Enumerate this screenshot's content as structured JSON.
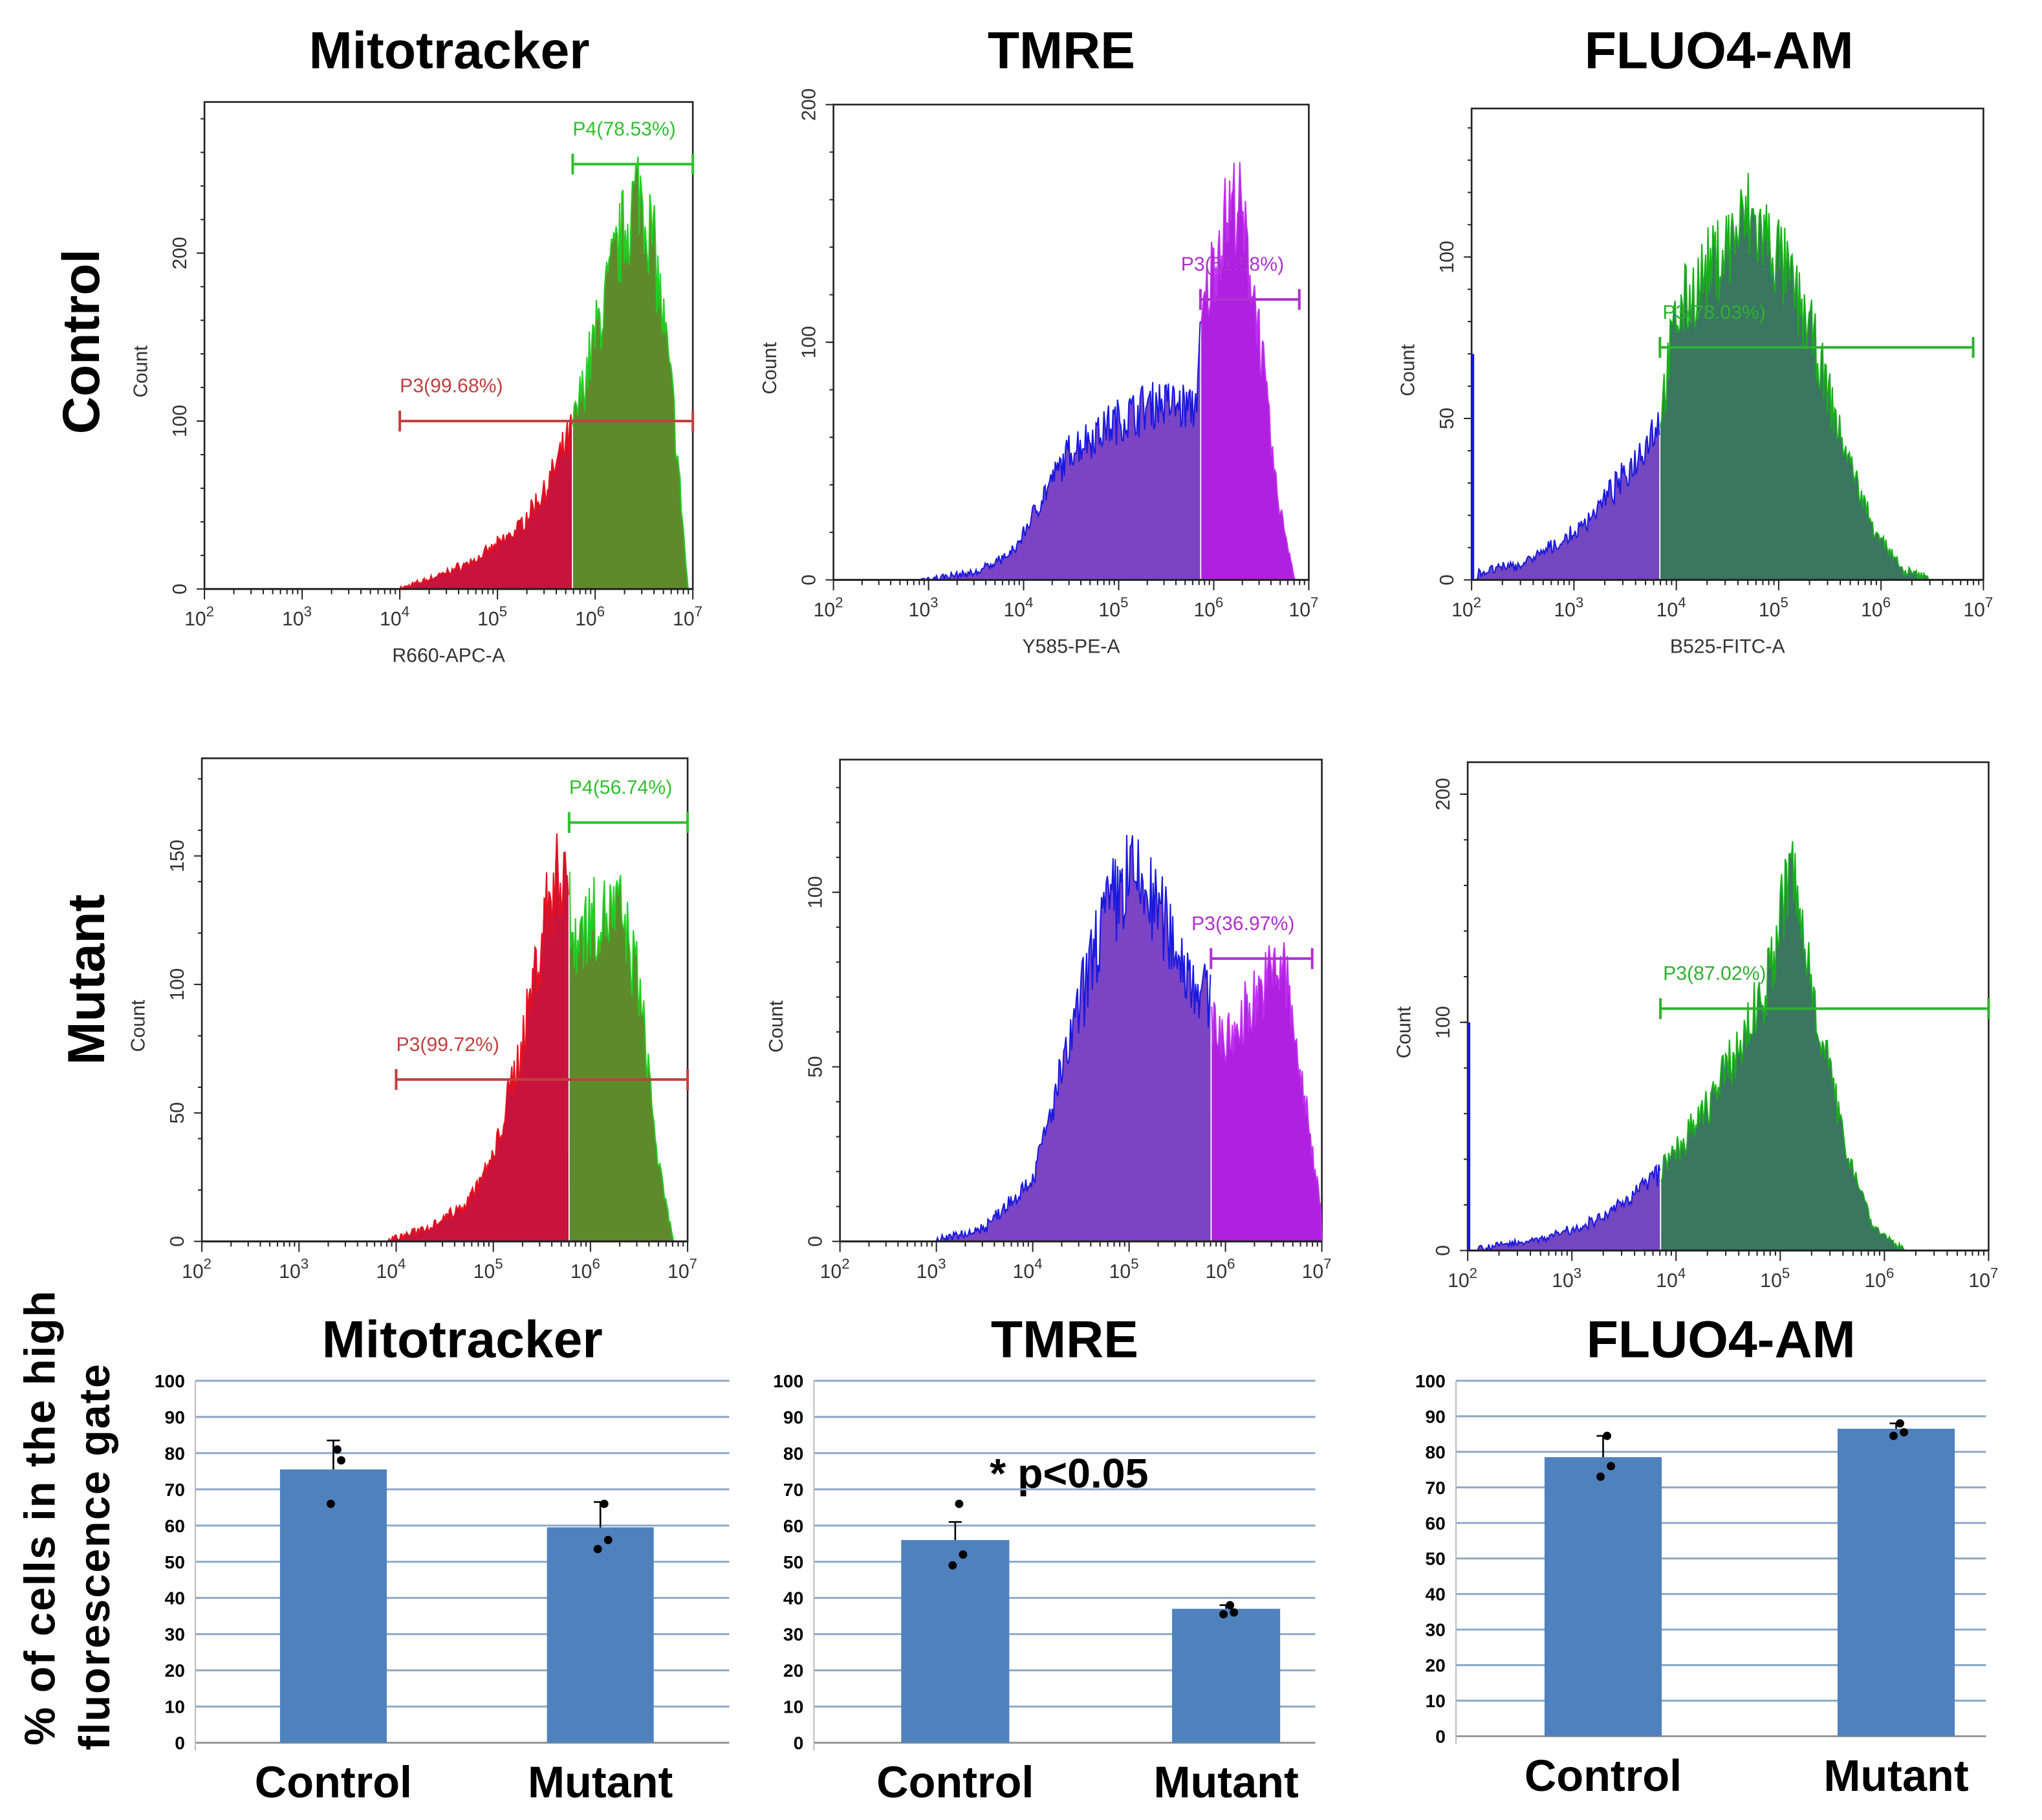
{
  "column_titles": [
    "Mitotracker",
    "TMRE",
    "FLUO4-AM"
  ],
  "row_labels": [
    "Control",
    "Mutant"
  ],
  "bar_ylabel_lines": [
    "% of cells in the high",
    "fluorescence gate"
  ],
  "significance": "* p<0.05",
  "colors": {
    "mito_low": "#c8143c",
    "mito_low_line": "#e8101c",
    "mito_high": "#5e8a2c",
    "mito_high_line": "#22d022",
    "tmre_low": "#7a44c4",
    "tmre_low_line": "#1818e0",
    "tmre_high": "#b020e0",
    "tmre_high_line": "#c030f0",
    "fluo_low": "#7446c0",
    "fluo_low_line": "#1818e0",
    "fluo_high": "#3a7660",
    "fluo_high_line": "#18b018",
    "bar": "#4f81bd",
    "grid": "#8ea9c8"
  },
  "chart_data": [
    {
      "type": "area",
      "name": "mito-control",
      "title": "",
      "xlabel": "R660-APC-A",
      "ylabel": "Count",
      "xscale": "log",
      "xlim": [
        100,
        10000000
      ],
      "ylim": [
        0,
        290
      ],
      "yticks": [
        0,
        100,
        200
      ],
      "xticks": [
        "2",
        "3",
        "4",
        "5",
        "6",
        "7"
      ],
      "gate_split_log10": 5.77,
      "gates": [
        {
          "label": "P3(99.68%)",
          "count": 100,
          "from_log10": 4,
          "to_log10": 7,
          "color": "#c04040"
        },
        {
          "label": "P4(78.53%)",
          "count": 253,
          "from_log10": 5.77,
          "to_log10": 7,
          "color": "#30c030"
        }
      ],
      "profile_log10_count": [
        [
          4,
          0
        ],
        [
          4.4,
          8
        ],
        [
          4.8,
          18
        ],
        [
          5.2,
          35
        ],
        [
          5.5,
          60
        ],
        [
          5.77,
          95
        ],
        [
          6,
          150
        ],
        [
          6.25,
          205
        ],
        [
          6.45,
          240
        ],
        [
          6.6,
          205
        ],
        [
          6.8,
          110
        ],
        [
          6.95,
          0
        ]
      ],
      "palette": "mito"
    },
    {
      "type": "area",
      "name": "tmre-control",
      "title": "",
      "xlabel": "Y585-PE-A",
      "ylabel": "Count",
      "xscale": "log",
      "xlim": [
        100,
        10000000
      ],
      "ylim": [
        0,
        200
      ],
      "yticks": [
        0,
        100,
        200
      ],
      "xticks": [
        "2",
        "3",
        "4",
        "5",
        "6",
        "7"
      ],
      "gate_split_log10": 5.86,
      "gates": [
        {
          "label": "P3(51.58%)",
          "count": 118,
          "from_log10": 5.86,
          "to_log10": 6.9,
          "color": "#b030d0"
        }
      ],
      "profile_log10_count": [
        [
          2.9,
          0
        ],
        [
          3.5,
          3
        ],
        [
          3.9,
          12
        ],
        [
          4.2,
          35
        ],
        [
          4.5,
          55
        ],
        [
          4.9,
          65
        ],
        [
          5.4,
          75
        ],
        [
          5.8,
          72
        ],
        [
          5.9,
          115
        ],
        [
          6.1,
          150
        ],
        [
          6.25,
          160
        ],
        [
          6.45,
          115
        ],
        [
          6.65,
          40
        ],
        [
          6.85,
          0
        ]
      ],
      "palette": "tmre"
    },
    {
      "type": "area",
      "name": "fluo-control",
      "title": "",
      "xlabel": "B525-FITC-A",
      "ylabel": "Count",
      "xscale": "log",
      "xlim": [
        100,
        10000000
      ],
      "ylim": [
        0,
        146
      ],
      "yticks": [
        0,
        50,
        100
      ],
      "xticks": [
        "2",
        "3",
        "4",
        "5",
        "6",
        "7"
      ],
      "gate_split_log10": 3.84,
      "gates": [
        {
          "label": "P3(78.03%)",
          "count": 72,
          "from_log10": 3.84,
          "to_log10": 6.9,
          "color": "#30b030"
        }
      ],
      "spike": {
        "log10": 2,
        "count": 70
      },
      "profile_log10_count": [
        [
          2.05,
          2
        ],
        [
          2.5,
          5
        ],
        [
          3,
          14
        ],
        [
          3.5,
          32
        ],
        [
          3.84,
          50
        ],
        [
          4,
          82
        ],
        [
          4.3,
          95
        ],
        [
          4.7,
          112
        ],
        [
          5,
          100
        ],
        [
          5.3,
          78
        ],
        [
          5.6,
          45
        ],
        [
          5.9,
          18
        ],
        [
          6.2,
          3
        ],
        [
          6.5,
          0
        ]
      ],
      "palette": "fluo"
    },
    {
      "type": "area",
      "name": "mito-mutant",
      "title": "",
      "xlabel": "",
      "ylabel": "Count",
      "xscale": "log",
      "xlim": [
        100,
        10000000
      ],
      "ylim": [
        0,
        188
      ],
      "yticks": [
        0,
        50,
        100,
        150
      ],
      "xticks": [
        "2",
        "3",
        "4",
        "5",
        "6",
        "7"
      ],
      "gate_split_log10": 5.78,
      "gates": [
        {
          "label": "P3(99.72%)",
          "count": 63,
          "from_log10": 4,
          "to_log10": 7,
          "color": "#c04040"
        },
        {
          "label": "P4(56.74%)",
          "count": 163,
          "from_log10": 5.78,
          "to_log10": 7,
          "color": "#30c030"
        }
      ],
      "profile_log10_count": [
        [
          3.9,
          0
        ],
        [
          4.3,
          5
        ],
        [
          4.7,
          14
        ],
        [
          5,
          32
        ],
        [
          5.3,
          78
        ],
        [
          5.55,
          130
        ],
        [
          5.75,
          150
        ],
        [
          5.8,
          118
        ],
        [
          6,
          125
        ],
        [
          6.3,
          128
        ],
        [
          6.5,
          100
        ],
        [
          6.7,
          30
        ],
        [
          6.85,
          0
        ]
      ],
      "palette": "mito"
    },
    {
      "type": "area",
      "name": "tmre-mutant",
      "title": "",
      "xlabel": "",
      "ylabel": "Count",
      "xscale": "log",
      "xlim": [
        100,
        10000000
      ],
      "ylim": [
        0,
        138
      ],
      "yticks": [
        0,
        50,
        100
      ],
      "xticks": [
        "2",
        "3",
        "4",
        "5",
        "6",
        "7"
      ],
      "gate_split_log10": 5.85,
      "gates": [
        {
          "label": "P3(36.97%)",
          "count": 81,
          "from_log10": 5.85,
          "to_log10": 6.9,
          "color": "#b030d0"
        }
      ],
      "profile_log10_count": [
        [
          3,
          0
        ],
        [
          3.5,
          4
        ],
        [
          4,
          18
        ],
        [
          4.4,
          58
        ],
        [
          4.7,
          90
        ],
        [
          5,
          105
        ],
        [
          5.3,
          95
        ],
        [
          5.6,
          78
        ],
        [
          5.85,
          68
        ],
        [
          6,
          55
        ],
        [
          6.3,
          70
        ],
        [
          6.6,
          80
        ],
        [
          6.85,
          35
        ],
        [
          7,
          10
        ]
      ],
      "palette": "tmre"
    },
    {
      "type": "area",
      "name": "fluo-mutant",
      "title": "",
      "xlabel": "",
      "ylabel": "Count",
      "xscale": "log",
      "xlim": [
        100,
        10000000
      ],
      "ylim": [
        0,
        214
      ],
      "yticks": [
        0,
        100,
        200
      ],
      "xticks": [
        "2",
        "3",
        "4",
        "5",
        "6",
        "7"
      ],
      "gate_split_log10": 3.85,
      "gates": [
        {
          "label": "P3(87.02%)",
          "count": 106,
          "from_log10": 3.85,
          "to_log10": 7,
          "color": "#30b030"
        }
      ],
      "spike": {
        "log10": 2,
        "count": 100
      },
      "profile_log10_count": [
        [
          2.1,
          1
        ],
        [
          2.7,
          5
        ],
        [
          3.3,
          14
        ],
        [
          3.85,
          35
        ],
        [
          4.2,
          55
        ],
        [
          4.6,
          88
        ],
        [
          4.9,
          120
        ],
        [
          5.1,
          168
        ],
        [
          5.3,
          118
        ],
        [
          5.6,
          50
        ],
        [
          5.9,
          10
        ],
        [
          6.2,
          0
        ]
      ],
      "palette": "fluo"
    },
    {
      "type": "bar",
      "name": "mito-bar",
      "title": "Mitotracker",
      "categories": [
        "Control",
        "Mutant"
      ],
      "values": [
        75.5,
        59.5
      ],
      "error_upper": [
        83.5,
        66.5
      ],
      "points": [
        [
          81,
          78,
          66
        ],
        [
          66,
          56,
          53.5
        ]
      ],
      "ylim": [
        0,
        100
      ],
      "yticks": [
        0,
        10,
        20,
        30,
        40,
        50,
        60,
        70,
        80,
        90,
        100
      ],
      "grid": true
    },
    {
      "type": "bar",
      "name": "tmre-bar",
      "title": "TMRE",
      "categories": [
        "Control",
        "Mutant"
      ],
      "values": [
        56,
        37
      ],
      "error_upper": [
        61,
        38
      ],
      "points": [
        [
          66,
          52,
          49
        ],
        [
          38,
          36,
          35.5
        ]
      ],
      "ylim": [
        0,
        100
      ],
      "yticks": [
        0,
        10,
        20,
        30,
        40,
        50,
        60,
        70,
        80,
        90,
        100
      ],
      "grid": true
    },
    {
      "type": "bar",
      "name": "fluo-bar",
      "title": "FLUO4-AM",
      "categories": [
        "Control",
        "Mutant"
      ],
      "values": [
        78.5,
        86.5
      ],
      "error_upper": [
        84.5,
        88
      ],
      "points": [
        [
          84.5,
          76,
          73
        ],
        [
          88,
          85.5,
          84.5
        ]
      ],
      "ylim": [
        0,
        100
      ],
      "yticks": [
        0,
        10,
        20,
        30,
        40,
        50,
        60,
        70,
        80,
        90,
        100
      ],
      "grid": true
    }
  ]
}
